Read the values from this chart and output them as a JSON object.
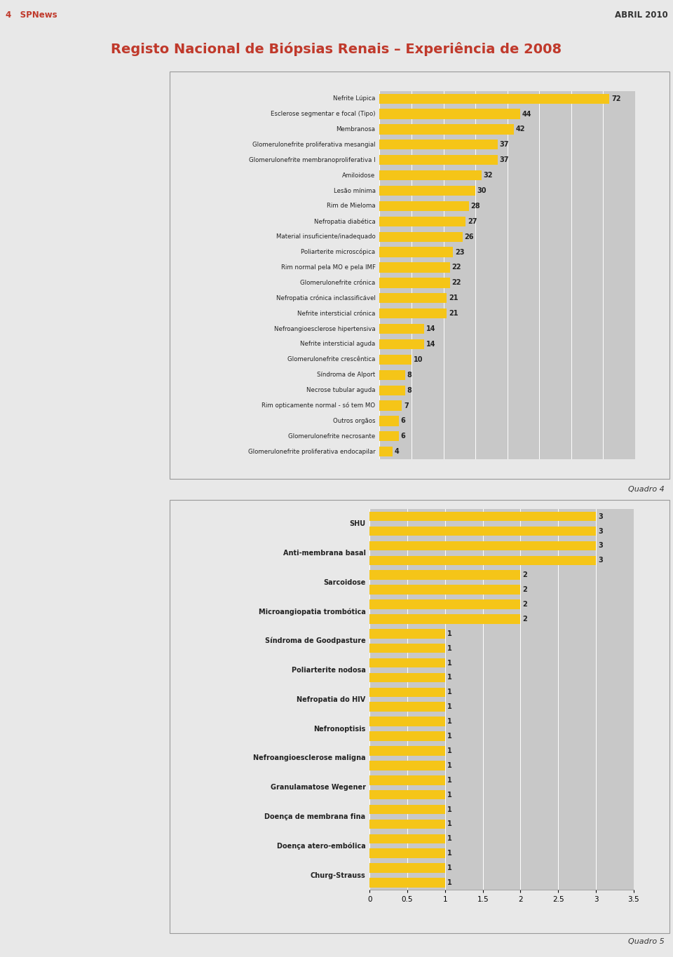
{
  "title": "Registo Nacional de Biópsias Renais – Experiência de 2008",
  "title_color": "#c0392b",
  "header_left": "4   SPNews",
  "header_right": "ABRIL 2010",
  "header_color": "#c0392b",
  "chart1_label": "Quadro 4",
  "chart2_label": "Quadro 5",
  "chart1_categories": [
    "Nefrite Lúpica",
    "Esclerose segmentar e focal (Tipo)",
    "Membranosa",
    "Glomerulonefrite proliferativa mesangial",
    "Glomerulonefrite membranoproliferativa I",
    "Amiloidose",
    "Lesão mínima",
    "Rim de Mieloma",
    "Nefropatia diabética",
    "Material insuficiente/inadequado",
    "Poliarterite microscópica",
    "Rim normal pela MO e pela IMF",
    "Glomerulonefrite crónica",
    "Nefropatia crónica inclassificável",
    "Nefrite intersticial crónica",
    "Nefroangioesclerose hipertensiva",
    "Nefrite intersticial aguda",
    "Glomerulonefrite crescêntica",
    "Síndroma de Alport",
    "Necrose tubular aguda",
    "Rim opticamente normal - só tem MO",
    "Outros orgãos",
    "Glomerulonefrite necrosante",
    "Glomerulonefrite proliferativa endocapilar"
  ],
  "chart1_values": [
    72,
    44,
    42,
    37,
    37,
    32,
    30,
    28,
    27,
    26,
    23,
    22,
    22,
    21,
    21,
    14,
    14,
    10,
    8,
    8,
    7,
    6,
    6,
    4
  ],
  "chart1_bar_color": "#f5c518",
  "chart1_bg_color": "#c8c8c8",
  "chart2_named_categories": [
    "SHU",
    "Anti-membrana basal",
    "Sarcoidose",
    "Microangiopatia trombótica",
    "Síndroma de Goodpasture",
    "Poliarterite nodosa",
    "Nefropatia do HIV",
    "Nefronoptisis",
    "Nefroangioesclerose maligna",
    "Granulamatose Wegener",
    "Doença de membrana fina",
    "Doença atero-embólica",
    "Churg-Strauss"
  ],
  "chart2_values": [
    3,
    3,
    3,
    3,
    2,
    2,
    2,
    2,
    1,
    1,
    1,
    1,
    1,
    1,
    1,
    1,
    1,
    1,
    1,
    1,
    1,
    1,
    1,
    1,
    1,
    1
  ],
  "chart2_bar_color": "#f5c518",
  "chart2_bg_color": "#c8c8c8",
  "white_bg": "#ffffff",
  "page_bg": "#e8e8e8",
  "text_color": "#222222"
}
